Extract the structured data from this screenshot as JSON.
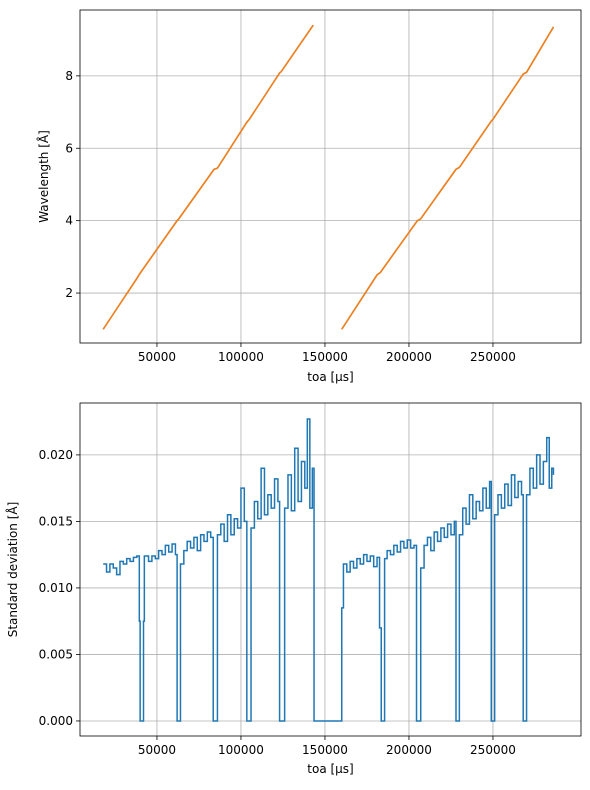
{
  "chart_data": [
    {
      "type": "line",
      "ylabel": "Wavelength [Å]",
      "xlabel": "toa [µs]",
      "x": [
        18000,
        38000,
        40000,
        62000,
        63000,
        84000,
        86000,
        103500,
        105000,
        123000,
        124000,
        143000,
        150000,
        160000,
        181000,
        183000,
        205000,
        207000,
        228000,
        230000,
        249000,
        250000,
        268000,
        270000,
        286000
      ],
      "series": [
        {
          "color": "#1f77b4",
          "values": [
            1.0,
            2.4,
            2.55,
            4.0,
            4.05,
            5.42,
            5.45,
            6.72,
            6.8,
            8.08,
            8.12,
            9.4,
            null,
            1.0,
            2.5,
            2.57,
            4.0,
            4.05,
            5.42,
            5.47,
            6.75,
            6.8,
            8.05,
            8.1,
            9.35
          ]
        },
        {
          "color": "#ff7f0e",
          "values": [
            1.0,
            2.4,
            2.55,
            4.0,
            4.05,
            5.42,
            5.45,
            6.72,
            6.8,
            8.08,
            8.12,
            9.4,
            null,
            1.0,
            2.5,
            2.57,
            4.0,
            4.05,
            5.42,
            5.47,
            6.75,
            6.8,
            8.05,
            8.1,
            9.35
          ]
        }
      ],
      "xlim": [
        4200,
        302400
      ],
      "ylim": [
        0.62,
        9.82
      ],
      "xticks": [
        50000,
        100000,
        150000,
        200000,
        250000
      ],
      "yticks": [
        2,
        4,
        6,
        8
      ],
      "grid": true
    },
    {
      "type": "line",
      "drawstyle": "steps",
      "ylabel": "Standard deviation [Å]",
      "xlabel": "toa [µs]",
      "x": [
        18000,
        20000,
        22000,
        24000,
        26000,
        28000,
        30000,
        32000,
        34000,
        36000,
        38000,
        39500,
        40000,
        42000,
        42500,
        45000,
        47000,
        49000,
        51000,
        53000,
        55000,
        57000,
        59000,
        61000,
        62000,
        64000,
        66000,
        68000,
        70000,
        72000,
        74000,
        76000,
        78000,
        80000,
        82000,
        83500,
        86000,
        88000,
        90000,
        92000,
        94000,
        96000,
        98000,
        100000,
        102000,
        103500,
        106000,
        108000,
        110000,
        112000,
        114000,
        116000,
        118000,
        120000,
        122000,
        123000,
        126000,
        128000,
        130000,
        132000,
        134000,
        136000,
        138000,
        139500,
        141000,
        142500,
        143500,
        160000,
        161000,
        163000,
        165000,
        167000,
        169000,
        171000,
        173000,
        175000,
        177000,
        179000,
        181000,
        182500,
        183500,
        185500,
        187000,
        189000,
        191000,
        193000,
        195000,
        197000,
        199000,
        201000,
        203000,
        204500,
        207000,
        209000,
        211000,
        213000,
        215000,
        217000,
        219000,
        221000,
        223000,
        225000,
        227000,
        228000,
        230000,
        232000,
        234000,
        236000,
        238000,
        240000,
        242000,
        244000,
        246000,
        248000,
        249000,
        251000,
        253000,
        255000,
        257000,
        259000,
        261000,
        263000,
        265000,
        267000,
        268000,
        270000,
        272000,
        274000,
        276000,
        278000,
        280000,
        282000,
        283500,
        285000,
        286000
      ],
      "series": [
        {
          "color": "#1f77b4",
          "values": [
            0.0118,
            0.0112,
            0.0118,
            0.0115,
            0.011,
            0.012,
            0.0118,
            0.0122,
            0.012,
            0.0123,
            0.0124,
            0.0075,
            0,
            0.0075,
            0.0124,
            0.012,
            0.0124,
            0.0122,
            0.0128,
            0.0125,
            0.0132,
            0.0127,
            0.0133,
            0.0125,
            0,
            0.0118,
            0.0128,
            0.0135,
            0.013,
            0.0138,
            0.0128,
            0.014,
            0.0135,
            0.0142,
            0.0138,
            0,
            0.014,
            0.0148,
            0.0135,
            0.0155,
            0.014,
            0.0152,
            0.0145,
            0.0175,
            0.015,
            0,
            0.0145,
            0.0165,
            0.0152,
            0.019,
            0.0155,
            0.017,
            0.016,
            0.0182,
            0.0165,
            0,
            0.016,
            0.0185,
            0.0158,
            0.0205,
            0.0165,
            0.0195,
            0.0175,
            0.0227,
            0.016,
            0.019,
            0,
            0.0085,
            0.0118,
            0.0112,
            0.012,
            0.0115,
            0.0122,
            0.0118,
            0.0125,
            0.012,
            0.0124,
            0.0116,
            0.0123,
            0.007,
            0,
            0.0122,
            0.0128,
            0.0125,
            0.0132,
            0.0127,
            0.0135,
            0.013,
            0.0136,
            0.013,
            0.0132,
            0,
            0.0115,
            0.0132,
            0.0138,
            0.0128,
            0.0142,
            0.0135,
            0.0145,
            0.0138,
            0.0148,
            0.014,
            0.015,
            0,
            0.014,
            0.016,
            0.0148,
            0.017,
            0.0152,
            0.0165,
            0.0158,
            0.0175,
            0.016,
            0.018,
            0,
            0.0155,
            0.017,
            0.016,
            0.0178,
            0.0162,
            0.0185,
            0.0168,
            0.018,
            0.017,
            0,
            0.017,
            0.019,
            0.0175,
            0.02,
            0.0178,
            0.0195,
            0.0213,
            0.0175,
            0.019,
            0.0185
          ]
        }
      ],
      "xlim": [
        4200,
        302400
      ],
      "ylim": [
        -0.00113,
        0.0239
      ],
      "xticks": [
        50000,
        100000,
        150000,
        200000,
        250000
      ],
      "yticks": [
        {
          "value": 0,
          "label": "0.000"
        },
        {
          "value": 0.005,
          "label": "0.005"
        },
        {
          "value": 0.01,
          "label": "0.010"
        },
        {
          "value": 0.015,
          "label": "0.015"
        },
        {
          "value": 0.02,
          "label": "0.020"
        }
      ],
      "grid": true
    }
  ]
}
